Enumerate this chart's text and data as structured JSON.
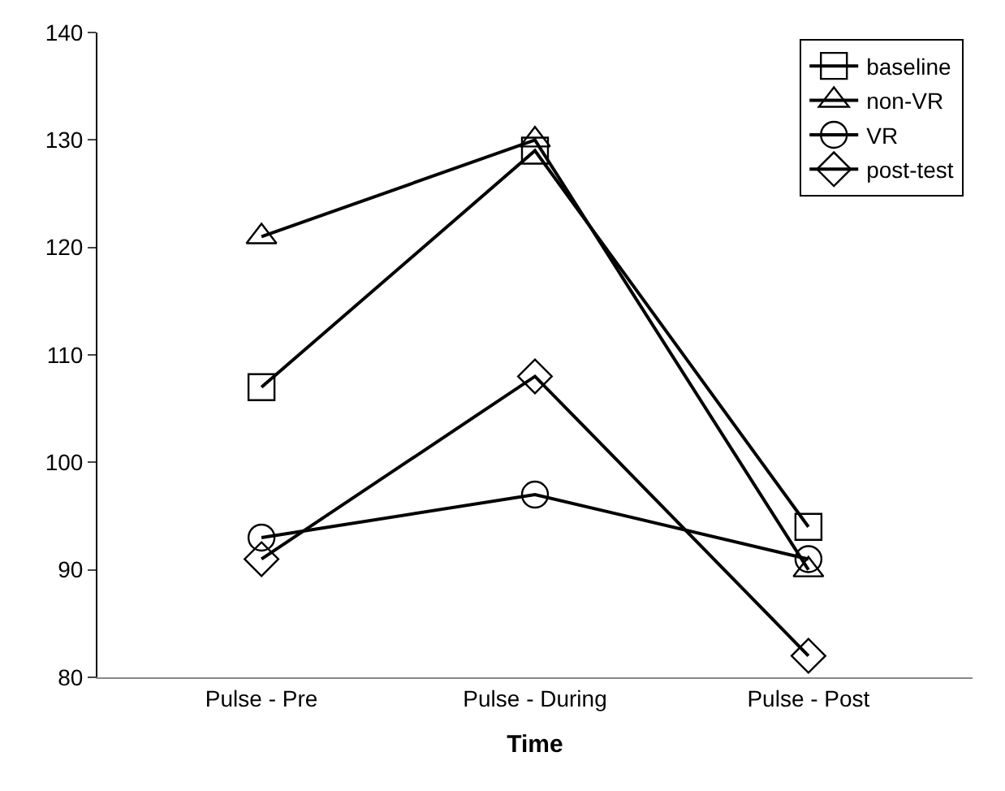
{
  "chart_data": {
    "type": "line",
    "xlabel": "Time",
    "categories": [
      "Pulse - Pre",
      "Pulse - During",
      "Pulse - Post"
    ],
    "ylim": [
      80,
      140
    ],
    "yticks": [
      80,
      90,
      100,
      110,
      120,
      130,
      140
    ],
    "grid": false,
    "legend": "top right",
    "series": [
      {
        "name": "baseline",
        "color": "#000000",
        "marker": "square",
        "values": [
          107,
          129,
          94
        ]
      },
      {
        "name": "non-VR",
        "color": "#000000",
        "marker": "triangle",
        "values": [
          121,
          130,
          90
        ]
      },
      {
        "name": "VR",
        "color": "#000000",
        "marker": "circle",
        "values": [
          93,
          97,
          91
        ]
      },
      {
        "name": "post-test",
        "color": "#000000",
        "marker": "diamond",
        "values": [
          91,
          108,
          82
        ]
      }
    ]
  }
}
